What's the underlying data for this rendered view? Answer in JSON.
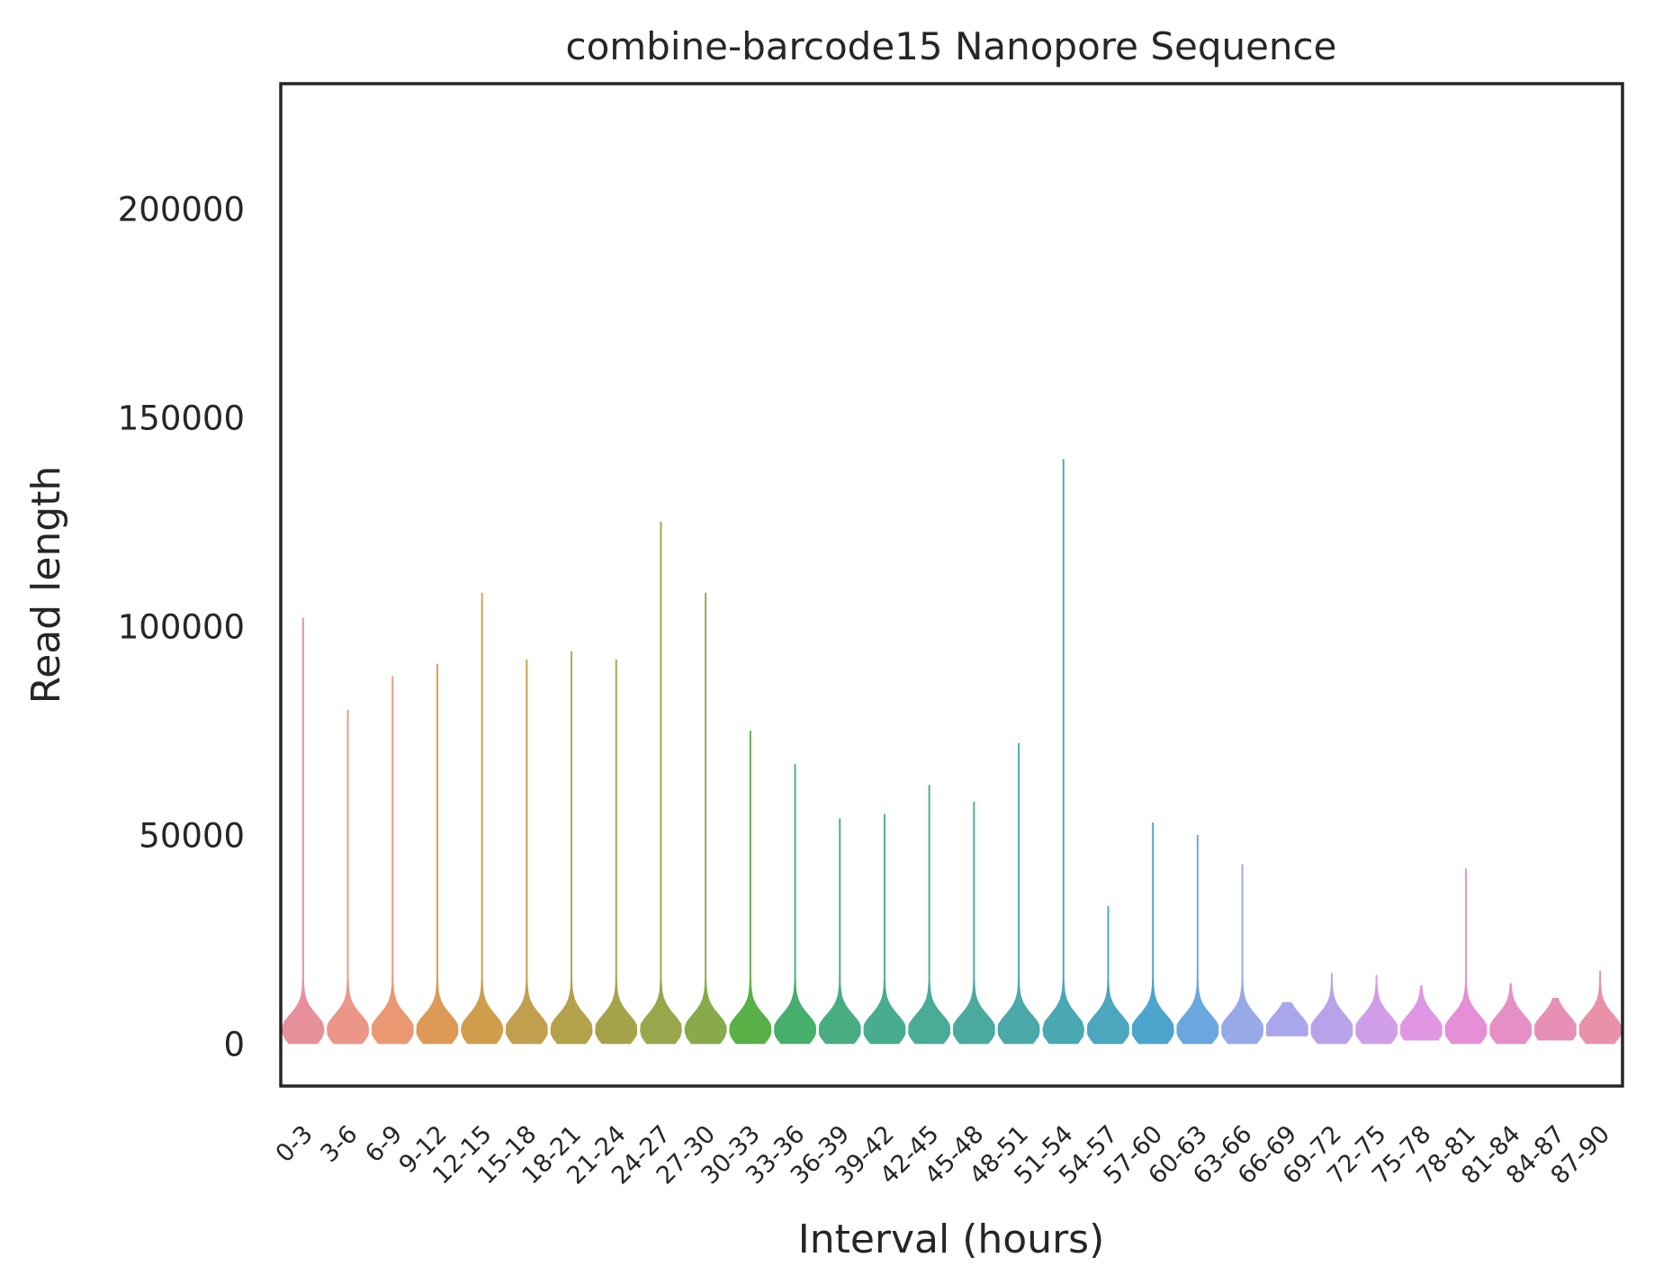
{
  "chart_data": {
    "type": "violin",
    "title": "combine-barcode15 Nanopore Sequence",
    "xlabel": "Interval (hours)",
    "ylabel": "Read length",
    "ylim": [
      -10000,
      230000
    ],
    "yticks": [
      0,
      50000,
      100000,
      150000,
      200000
    ],
    "grid": false,
    "legend": "none",
    "categories": [
      "0-3",
      "3-6",
      "6-9",
      "9-12",
      "12-15",
      "15-18",
      "18-21",
      "21-24",
      "24-27",
      "27-30",
      "30-33",
      "33-36",
      "36-39",
      "39-42",
      "42-45",
      "45-48",
      "48-51",
      "51-54",
      "54-57",
      "57-60",
      "60-63",
      "63-66",
      "66-69",
      "69-72",
      "72-75",
      "75-78",
      "78-81",
      "81-84",
      "84-87",
      "87-90"
    ],
    "series": [
      {
        "category": "0-3",
        "min": 200,
        "max": 102000,
        "mode": 3500,
        "color": "#e8909a"
      },
      {
        "category": "3-6",
        "min": 200,
        "max": 80000,
        "mode": 3500,
        "color": "#eb9688"
      },
      {
        "category": "6-9",
        "min": 200,
        "max": 88000,
        "mode": 3500,
        "color": "#e99872"
      },
      {
        "category": "9-12",
        "min": 200,
        "max": 91000,
        "mode": 3500,
        "color": "#dd9956"
      },
      {
        "category": "12-15",
        "min": 200,
        "max": 108000,
        "mode": 3500,
        "color": "#cf9e4c"
      },
      {
        "category": "15-18",
        "min": 200,
        "max": 92000,
        "mode": 3500,
        "color": "#c29f4f"
      },
      {
        "category": "18-21",
        "min": 200,
        "max": 94000,
        "mode": 3500,
        "color": "#b4a24b"
      },
      {
        "category": "21-24",
        "min": 200,
        "max": 92000,
        "mode": 3500,
        "color": "#a6a34a"
      },
      {
        "category": "24-27",
        "min": 200,
        "max": 125000,
        "mode": 3500,
        "color": "#99a64b"
      },
      {
        "category": "27-30",
        "min": 200,
        "max": 108000,
        "mode": 3500,
        "color": "#88aa4a"
      },
      {
        "category": "30-33",
        "min": 200,
        "max": 75000,
        "mode": 3500,
        "color": "#59b046"
      },
      {
        "category": "33-36",
        "min": 200,
        "max": 67000,
        "mode": 3500,
        "color": "#46af6c"
      },
      {
        "category": "36-39",
        "min": 200,
        "max": 54000,
        "mode": 3500,
        "color": "#4aad82"
      },
      {
        "category": "39-42",
        "min": 200,
        "max": 55000,
        "mode": 3500,
        "color": "#48ad8e"
      },
      {
        "category": "42-45",
        "min": 200,
        "max": 62000,
        "mode": 3500,
        "color": "#4aab97"
      },
      {
        "category": "45-48",
        "min": 200,
        "max": 58000,
        "mode": 3500,
        "color": "#4aaa9f"
      },
      {
        "category": "48-51",
        "min": 200,
        "max": 72000,
        "mode": 3500,
        "color": "#4aa9a8"
      },
      {
        "category": "51-54",
        "min": 200,
        "max": 140000,
        "mode": 3500,
        "color": "#4aa8b3"
      },
      {
        "category": "54-57",
        "min": 200,
        "max": 33000,
        "mode": 3500,
        "color": "#4ba6be"
      },
      {
        "category": "57-60",
        "min": 200,
        "max": 53000,
        "mode": 3500,
        "color": "#4ba5cc"
      },
      {
        "category": "60-63",
        "min": 200,
        "max": 50000,
        "mode": 3500,
        "color": "#6aa6e0"
      },
      {
        "category": "63-66",
        "min": 200,
        "max": 43000,
        "mode": 3500,
        "color": "#97a9e6"
      },
      {
        "category": "66-69",
        "min": 2000,
        "max": 10000,
        "mode": 3500,
        "color": "#aaa6ec"
      },
      {
        "category": "69-72",
        "min": 200,
        "max": 17000,
        "mode": 3500,
        "color": "#b8a3ea"
      },
      {
        "category": "72-75",
        "min": 200,
        "max": 16500,
        "mode": 3500,
        "color": "#d09ee8"
      },
      {
        "category": "75-78",
        "min": 1000,
        "max": 14000,
        "mode": 3500,
        "color": "#df97e3"
      },
      {
        "category": "78-81",
        "min": 200,
        "max": 42000,
        "mode": 3500,
        "color": "#e590d6"
      },
      {
        "category": "81-84",
        "min": 200,
        "max": 14500,
        "mode": 3500,
        "color": "#e58fc6"
      },
      {
        "category": "84-87",
        "min": 1000,
        "max": 11000,
        "mode": 3500,
        "color": "#e690b6"
      },
      {
        "category": "87-90",
        "min": 200,
        "max": 17500,
        "mode": 3500,
        "color": "#e891a8"
      }
    ]
  }
}
